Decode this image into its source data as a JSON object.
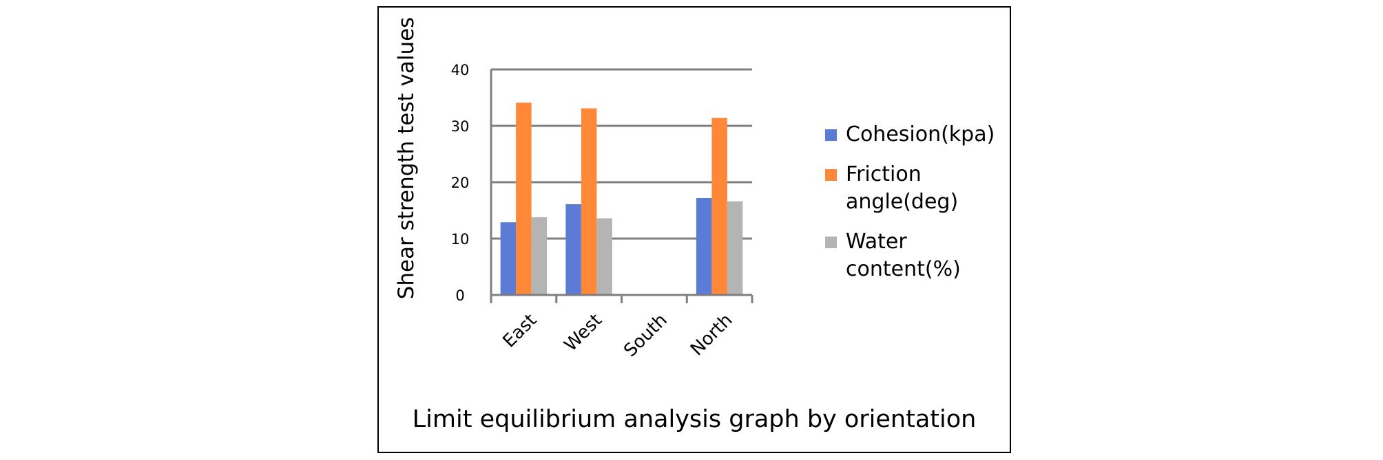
{
  "chart_data": {
    "type": "bar",
    "title": "",
    "caption": "Limit equilibrium analysis graph by orientation",
    "xlabel": "",
    "ylabel": "Shear strength test values",
    "ylim": [
      0,
      40
    ],
    "yticks": [
      "0",
      "10",
      "20",
      "30",
      "40"
    ],
    "categories": [
      "East",
      "West",
      "South",
      "North"
    ],
    "grid": true,
    "legend_position": "right",
    "series": [
      {
        "name": "Cohesion(kpa)",
        "color": "#5B7BD5",
        "values": [
          12.9,
          16.1,
          null,
          17.2
        ]
      },
      {
        "name": "Friction angle(deg)",
        "color": "#FF8838",
        "values": [
          34.1,
          33.1,
          null,
          31.4
        ]
      },
      {
        "name": "Water content(%)",
        "color": "#B4B4B4",
        "values": [
          13.8,
          13.6,
          null,
          16.6
        ]
      }
    ]
  }
}
